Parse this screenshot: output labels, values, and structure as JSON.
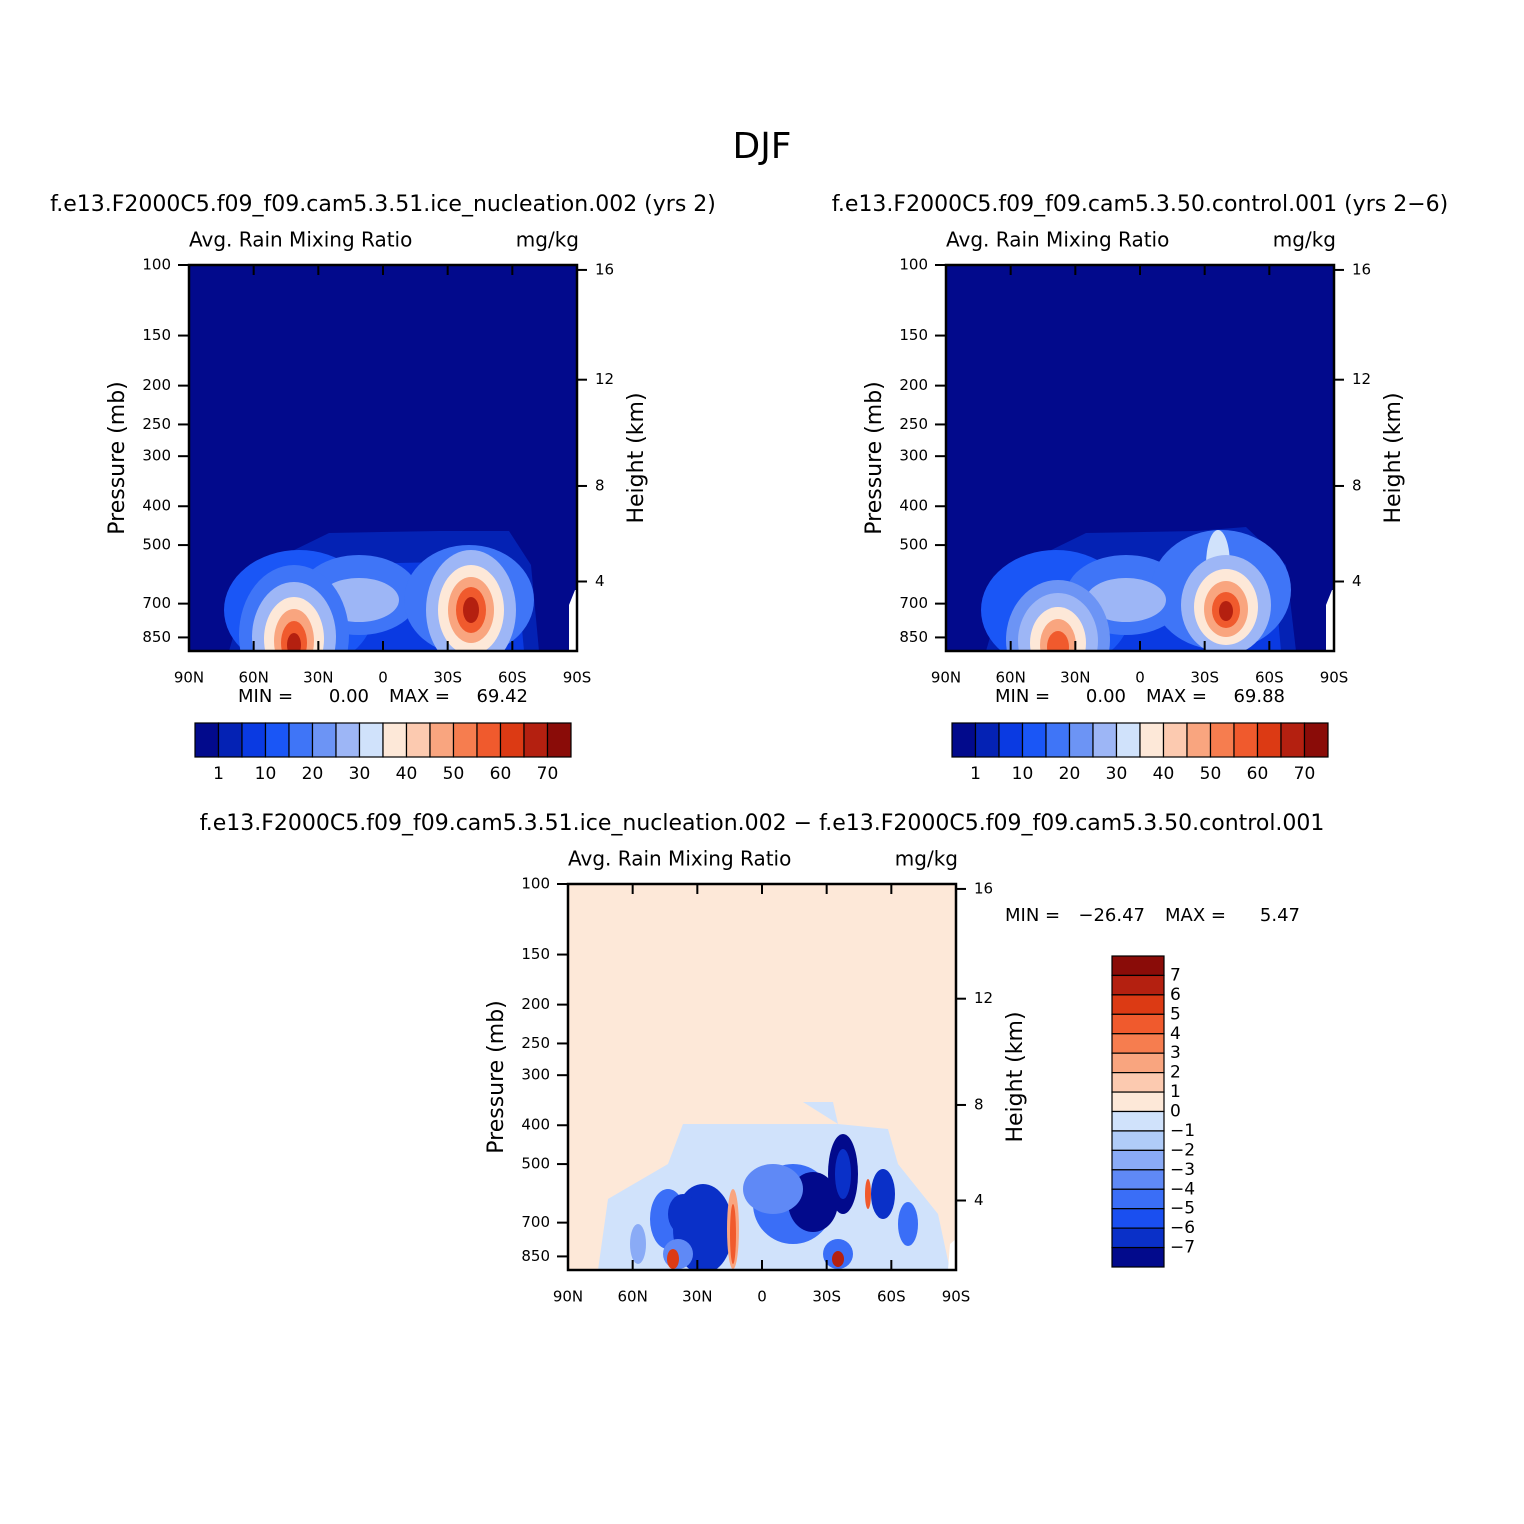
{
  "title": "DJF",
  "panels": [
    {
      "case": "f.e13.F2000C5.f09_f09.cam5.3.51.ice_nucleation.002  (yrs 2)",
      "variable": "Avg. Rain Mixing Ratio",
      "units": "mg/kg",
      "y_label": "Pressure (mb)",
      "y2_label": "Height (km)",
      "yscale": "log",
      "ylim": [
        100,
        919
      ],
      "yticks": [
        100,
        150,
        200,
        250,
        300,
        400,
        500,
        700,
        850
      ],
      "y2ticks": [
        16,
        12,
        8,
        4
      ],
      "xlim": [
        90,
        -90
      ],
      "xticks": [
        {
          "value": 90,
          "label": "90N"
        },
        {
          "value": 60,
          "label": "60N"
        },
        {
          "value": 30,
          "label": "30N"
        },
        0,
        {
          "value": -30,
          "label": "30S"
        },
        {
          "value": -60,
          "label": "60S"
        },
        {
          "value": -90,
          "label": "90S"
        }
      ],
      "min_label": "MIN =",
      "min": "0.00",
      "max_label": "MAX =",
      "max": "69.42",
      "colorbar": {
        "orientation": "horizontal",
        "ticks": [
          1,
          10,
          20,
          30,
          40,
          50,
          60,
          70
        ],
        "colors": [
          "#020a8c",
          "#0422b4",
          "#0a3ae2",
          "#1a56f6",
          "#3f75f7",
          "#6c94f5",
          "#9db6f6",
          "#d0e2fb",
          "#fde8d8",
          "#fccab0",
          "#f9a57f",
          "#f67d4f",
          "#f05a2d",
          "#dc3a14",
          "#b42010",
          "#8a0c08"
        ]
      }
    },
    {
      "case": "f.e13.F2000C5.f09_f09.cam5.3.50.control.001  (yrs 2−6)",
      "variable": "Avg. Rain Mixing Ratio",
      "units": "mg/kg",
      "y_label": "Pressure (mb)",
      "y2_label": "Height (km)",
      "yscale": "log",
      "ylim": [
        100,
        919
      ],
      "yticks": [
        100,
        150,
        200,
        250,
        300,
        400,
        500,
        700,
        850
      ],
      "y2ticks": [
        16,
        12,
        8,
        4
      ],
      "xlim": [
        90,
        -90
      ],
      "xticks": [
        {
          "value": 90,
          "label": "90N"
        },
        {
          "value": 60,
          "label": "60N"
        },
        {
          "value": 30,
          "label": "30N"
        },
        0,
        {
          "value": -30,
          "label": "30S"
        },
        {
          "value": -60,
          "label": "60S"
        },
        {
          "value": -90,
          "label": "90S"
        }
      ],
      "min_label": "MIN =",
      "min": "0.00",
      "max_label": "MAX =",
      "max": "69.88",
      "colorbar": {
        "orientation": "horizontal",
        "ticks": [
          1,
          10,
          20,
          30,
          40,
          50,
          60,
          70
        ],
        "colors": [
          "#020a8c",
          "#0422b4",
          "#0a3ae2",
          "#1a56f6",
          "#3f75f7",
          "#6c94f5",
          "#9db6f6",
          "#d0e2fb",
          "#fde8d8",
          "#fccab0",
          "#f9a57f",
          "#f67d4f",
          "#f05a2d",
          "#dc3a14",
          "#b42010",
          "#8a0c08"
        ]
      }
    },
    {
      "case": "f.e13.F2000C5.f09_f09.cam5.3.51.ice_nucleation.002 − f.e13.F2000C5.f09_f09.cam5.3.50.control.001",
      "variable": "Avg. Rain Mixing Ratio",
      "units": "mg/kg",
      "y_label": "Pressure (mb)",
      "y2_label": "Height (km)",
      "yscale": "log",
      "ylim": [
        100,
        919
      ],
      "yticks": [
        100,
        150,
        200,
        250,
        300,
        400,
        500,
        700,
        850
      ],
      "y2ticks": [
        16,
        12,
        8,
        4
      ],
      "xlim": [
        90,
        -90
      ],
      "xticks": [
        {
          "value": 90,
          "label": "90N"
        },
        {
          "value": 60,
          "label": "60N"
        },
        {
          "value": 30,
          "label": "30N"
        },
        0,
        {
          "value": -30,
          "label": "30S"
        },
        {
          "value": -60,
          "label": "60S"
        },
        {
          "value": -90,
          "label": "90S"
        }
      ],
      "min_label": "MIN =",
      "min": "−26.47",
      "max_label": "MAX =",
      "max": "5.47",
      "colorbar": {
        "orientation": "vertical",
        "ticks": [
          7,
          6,
          5,
          4,
          3,
          2,
          1,
          0,
          {
            "value": -1,
            "label": "−1"
          },
          {
            "value": -2,
            "label": "−2"
          },
          {
            "value": -3,
            "label": "−3"
          },
          {
            "value": -4,
            "label": "−4"
          },
          {
            "value": -5,
            "label": "−5"
          },
          {
            "value": -6,
            "label": "−6"
          },
          {
            "value": -7,
            "label": "−7"
          }
        ],
        "colors": [
          "#8a0c08",
          "#b42010",
          "#dc3a14",
          "#f05a2d",
          "#f67d4f",
          "#f9a57f",
          "#fccab0",
          "#fde8d8",
          "#d0e2fb",
          "#b0ccf8",
          "#8aabf6",
          "#5f89f6",
          "#3a6ef7",
          "#1a4ff0",
          "#0a30c8",
          "#020a8c"
        ]
      }
    }
  ]
}
